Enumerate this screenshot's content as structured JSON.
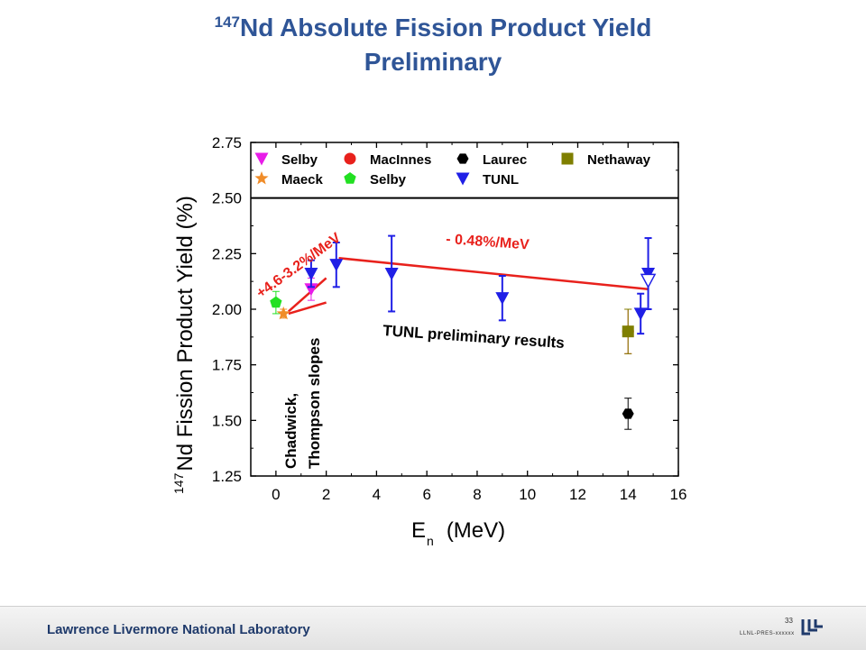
{
  "title": {
    "sup": "147",
    "line1": "Nd Absolute Fission Product Yield",
    "line2": "Preliminary"
  },
  "chart_data": {
    "type": "scatter",
    "xlim": [
      -1,
      16
    ],
    "ylim": [
      1.25,
      2.75
    ],
    "xticks": [
      0,
      2,
      4,
      6,
      8,
      10,
      12,
      14,
      16
    ],
    "yticks": [
      "1.25",
      "1.50",
      "1.75",
      "2.00",
      "2.25",
      "2.50",
      "2.75"
    ],
    "ylabel_sup": "147",
    "ylabel": "Nd Fission Product Yield (%)",
    "xlabel_main": "E",
    "xlabel_sub": "n",
    "xlabel_unit": "(MeV)",
    "reference_line_y": 2.5,
    "legend": [
      {
        "name": "Selby",
        "marker": "triangle-down",
        "color": "#e81ce8"
      },
      {
        "name": "MacInnes",
        "marker": "circle",
        "color": "#e8211c"
      },
      {
        "name": "Laurec",
        "marker": "hexagon",
        "color": "#000000"
      },
      {
        "name": "Nethaway",
        "marker": "square",
        "color": "#7f7f00"
      },
      {
        "name": "Maeck",
        "marker": "star",
        "color": "#f08c28"
      },
      {
        "name": "Selby",
        "marker": "pentagon",
        "color": "#22e022"
      },
      {
        "name": "TUNL",
        "marker": "triangle-down",
        "color": "#1f1fe6"
      }
    ],
    "series": [
      {
        "name": "Selby",
        "marker": "triangle-down",
        "color": "#e81ce8",
        "points": [
          {
            "x": 1.4,
            "y": 2.09,
            "err": 0.05
          }
        ]
      },
      {
        "name": "MacInnes",
        "marker": "circle",
        "color": "#e8211c",
        "points": [
          {
            "x": 14.0,
            "y": 1.9,
            "err": 0.1
          }
        ]
      },
      {
        "name": "Laurec",
        "marker": "hexagon",
        "color": "#000000",
        "points": [
          {
            "x": 14.0,
            "y": 1.53,
            "err": 0.07
          }
        ]
      },
      {
        "name": "Nethaway",
        "marker": "square",
        "color": "#7f7f00",
        "points": [
          {
            "x": 14.0,
            "y": 1.9,
            "err": 0.1
          }
        ]
      },
      {
        "name": "Maeck",
        "marker": "star",
        "color": "#f08c28",
        "points": [
          {
            "x": 0.3,
            "y": 1.98,
            "err": 0.02
          }
        ]
      },
      {
        "name": "Selby",
        "marker": "pentagon",
        "color": "#22e022",
        "points": [
          {
            "x": 0.0,
            "y": 2.03,
            "err": 0.05
          }
        ]
      },
      {
        "name": "TUNL",
        "marker": "triangle-down",
        "color": "#1f1fe6",
        "points": [
          {
            "x": 1.4,
            "y": 2.16,
            "err": 0.06
          },
          {
            "x": 2.4,
            "y": 2.2,
            "err": 0.1
          },
          {
            "x": 4.6,
            "y": 2.16,
            "err": 0.17
          },
          {
            "x": 9.0,
            "y": 2.05,
            "err": 0.1
          },
          {
            "x": 14.5,
            "y": 1.98,
            "err": 0.09
          },
          {
            "x": 14.8,
            "y": 2.16,
            "err": 0.16
          }
        ]
      }
    ],
    "open_points": [
      {
        "x": 14.8,
        "y": 2.13,
        "color": "#1f1fe6"
      }
    ],
    "fit_lines": [
      {
        "x": [
          2.5,
          14.8
        ],
        "y": [
          2.23,
          2.09
        ],
        "color": "#e8211c"
      },
      {
        "x": [
          0.5,
          2.0
        ],
        "y": [
          1.99,
          2.14
        ],
        "color": "#e8211c"
      },
      {
        "x": [
          0.5,
          2.0
        ],
        "y": [
          1.98,
          2.03
        ],
        "color": "#e8211c"
      }
    ],
    "annotations": {
      "slope_steep": "+4.6-3.2%/MeV",
      "slope_flat": "- 0.48%/MeV",
      "tunl": "TUNL preliminary results",
      "chadwick_1": "Chadwick,",
      "chadwick_2": "Thompson slopes"
    }
  },
  "footer": {
    "lab": "Lawrence Livermore National Laboratory",
    "slide_number": "33",
    "pres_id": "LLNL-PRES-xxxxxx"
  }
}
